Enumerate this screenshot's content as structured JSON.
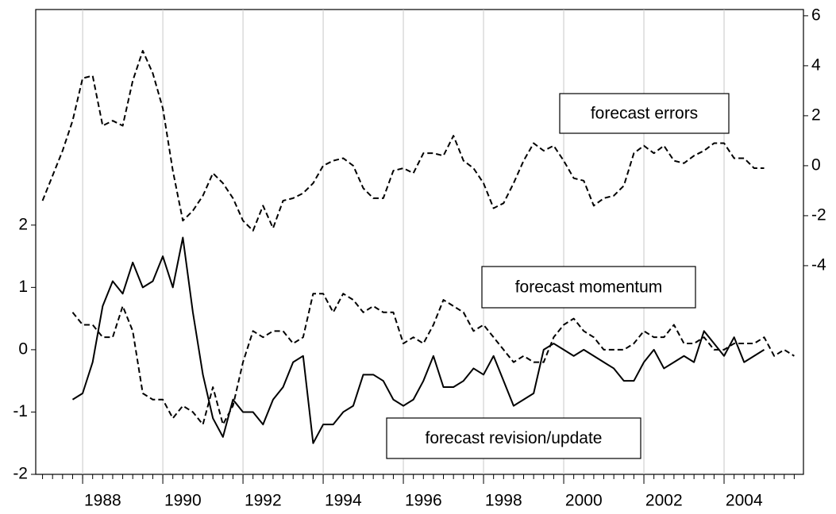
{
  "chart_data": {
    "type": "line",
    "annotations": [
      "forecast errors",
      "forecast momentum",
      "forecast revision/update"
    ],
    "x": [
      1987,
      1987.25,
      1987.5,
      1987.75,
      1988,
      1988.25,
      1988.5,
      1988.75,
      1989,
      1989.25,
      1989.5,
      1989.75,
      1990,
      1990.25,
      1990.5,
      1990.75,
      1991,
      1991.25,
      1991.5,
      1991.75,
      1992,
      1992.25,
      1992.5,
      1992.75,
      1993,
      1993.25,
      1993.5,
      1993.75,
      1994,
      1994.25,
      1994.5,
      1994.75,
      1995,
      1995.25,
      1995.5,
      1995.75,
      1996,
      1996.25,
      1996.5,
      1996.75,
      1997,
      1997.25,
      1997.5,
      1997.75,
      1998,
      1998.25,
      1998.5,
      1998.75,
      1999,
      1999.25,
      1999.5,
      1999.75,
      2000,
      2000.25,
      2000.5,
      2000.75,
      2001,
      2001.25,
      2001.5,
      2001.75,
      2002,
      2002.25,
      2002.5,
      2002.75,
      2003,
      2003.25,
      2003.5,
      2003.75,
      2004,
      2004.25,
      2004.5,
      2004.75,
      2005,
      2005.25,
      2005.5,
      2005.75
    ],
    "series": [
      {
        "name": "forecast errors",
        "color": "#000000",
        "line_style": "dashed",
        "axis": "y2",
        "values": [
          -1.4,
          -0.4,
          0.6,
          1.8,
          3.5,
          3.6,
          1.6,
          1.8,
          1.6,
          3.4,
          4.6,
          3.7,
          2.3,
          -0.2,
          -2.2,
          -1.8,
          -1.2,
          -0.3,
          -0.7,
          -1.3,
          -2.2,
          -2.6,
          -1.6,
          -2.5,
          -1.4,
          -1.3,
          -1.1,
          -0.7,
          0.0,
          0.2,
          0.3,
          0.0,
          -0.9,
          -1.3,
          -1.3,
          -0.2,
          -0.1,
          -0.3,
          0.5,
          0.5,
          0.4,
          1.2,
          0.2,
          -0.1,
          -0.7,
          -1.7,
          -1.5,
          -0.7,
          0.2,
          0.9,
          0.6,
          0.8,
          0.2,
          -0.5,
          -0.6,
          -1.6,
          -1.3,
          -1.2,
          -0.8,
          0.5,
          0.8,
          0.5,
          0.8,
          0.2,
          0.1,
          0.4,
          0.6,
          0.9,
          0.9,
          0.3,
          0.3,
          -0.1,
          -0.1,
          null,
          null,
          null
        ]
      },
      {
        "name": "forecast momentum",
        "color": "#000000",
        "line_style": "dashed",
        "axis": "y",
        "values": [
          null,
          null,
          null,
          0.6,
          0.4,
          0.4,
          0.2,
          0.2,
          0.7,
          0.3,
          -0.7,
          -0.8,
          -0.8,
          -1.1,
          -0.9,
          -1.0,
          -1.2,
          -0.6,
          -1.2,
          -0.9,
          -0.2,
          0.3,
          0.2,
          0.3,
          0.3,
          0.1,
          0.2,
          0.9,
          0.9,
          0.6,
          0.9,
          0.8,
          0.6,
          0.7,
          0.6,
          0.6,
          0.1,
          0.2,
          0.1,
          0.4,
          0.8,
          0.7,
          0.6,
          0.3,
          0.4,
          0.2,
          0.0,
          -0.2,
          -0.1,
          -0.2,
          -0.2,
          0.2,
          0.4,
          0.5,
          0.3,
          0.2,
          0.0,
          0.0,
          0.0,
          0.1,
          0.3,
          0.2,
          0.2,
          0.4,
          0.1,
          0.1,
          0.2,
          0.0,
          0.0,
          0.1,
          0.1,
          0.1,
          0.2,
          -0.1,
          0.0,
          -0.1
        ]
      },
      {
        "name": "forecast revision/update",
        "color": "#000000",
        "line_style": "solid",
        "axis": "y",
        "values": [
          null,
          null,
          null,
          -0.8,
          -0.7,
          -0.2,
          0.7,
          1.1,
          0.9,
          1.4,
          1.0,
          1.1,
          1.5,
          1.0,
          1.8,
          0.6,
          -0.4,
          -1.1,
          -1.4,
          -0.8,
          -1.0,
          -1.0,
          -1.2,
          -0.8,
          -0.6,
          -0.2,
          -0.1,
          -1.5,
          -1.2,
          -1.2,
          -1.0,
          -0.9,
          -0.4,
          -0.4,
          -0.5,
          -0.8,
          -0.9,
          -0.8,
          -0.5,
          -0.1,
          -0.6,
          -0.6,
          -0.5,
          -0.3,
          -0.4,
          -0.1,
          -0.5,
          -0.9,
          -0.8,
          -0.7,
          0.0,
          0.1,
          0.0,
          -0.1,
          0.0,
          -0.1,
          -0.2,
          -0.3,
          -0.5,
          -0.5,
          -0.2,
          0.0,
          -0.3,
          -0.2,
          -0.1,
          -0.2,
          0.3,
          0.1,
          -0.1,
          0.2,
          -0.2,
          -0.1,
          0.0,
          null,
          null,
          null
        ]
      }
    ],
    "xlim": [
      1986.83,
      2005.98
    ],
    "xticks": [
      1988,
      1990,
      1992,
      1994,
      1996,
      1998,
      2000,
      2002,
      2004
    ],
    "ylim": [
      -2,
      5.46
    ],
    "yticks": [
      -2,
      -1,
      0,
      1,
      2
    ],
    "y2lim": [
      -12.35,
      6.25
    ],
    "y2ticks": [
      -4,
      -2,
      0,
      2,
      4,
      6
    ],
    "x_grid": true
  }
}
